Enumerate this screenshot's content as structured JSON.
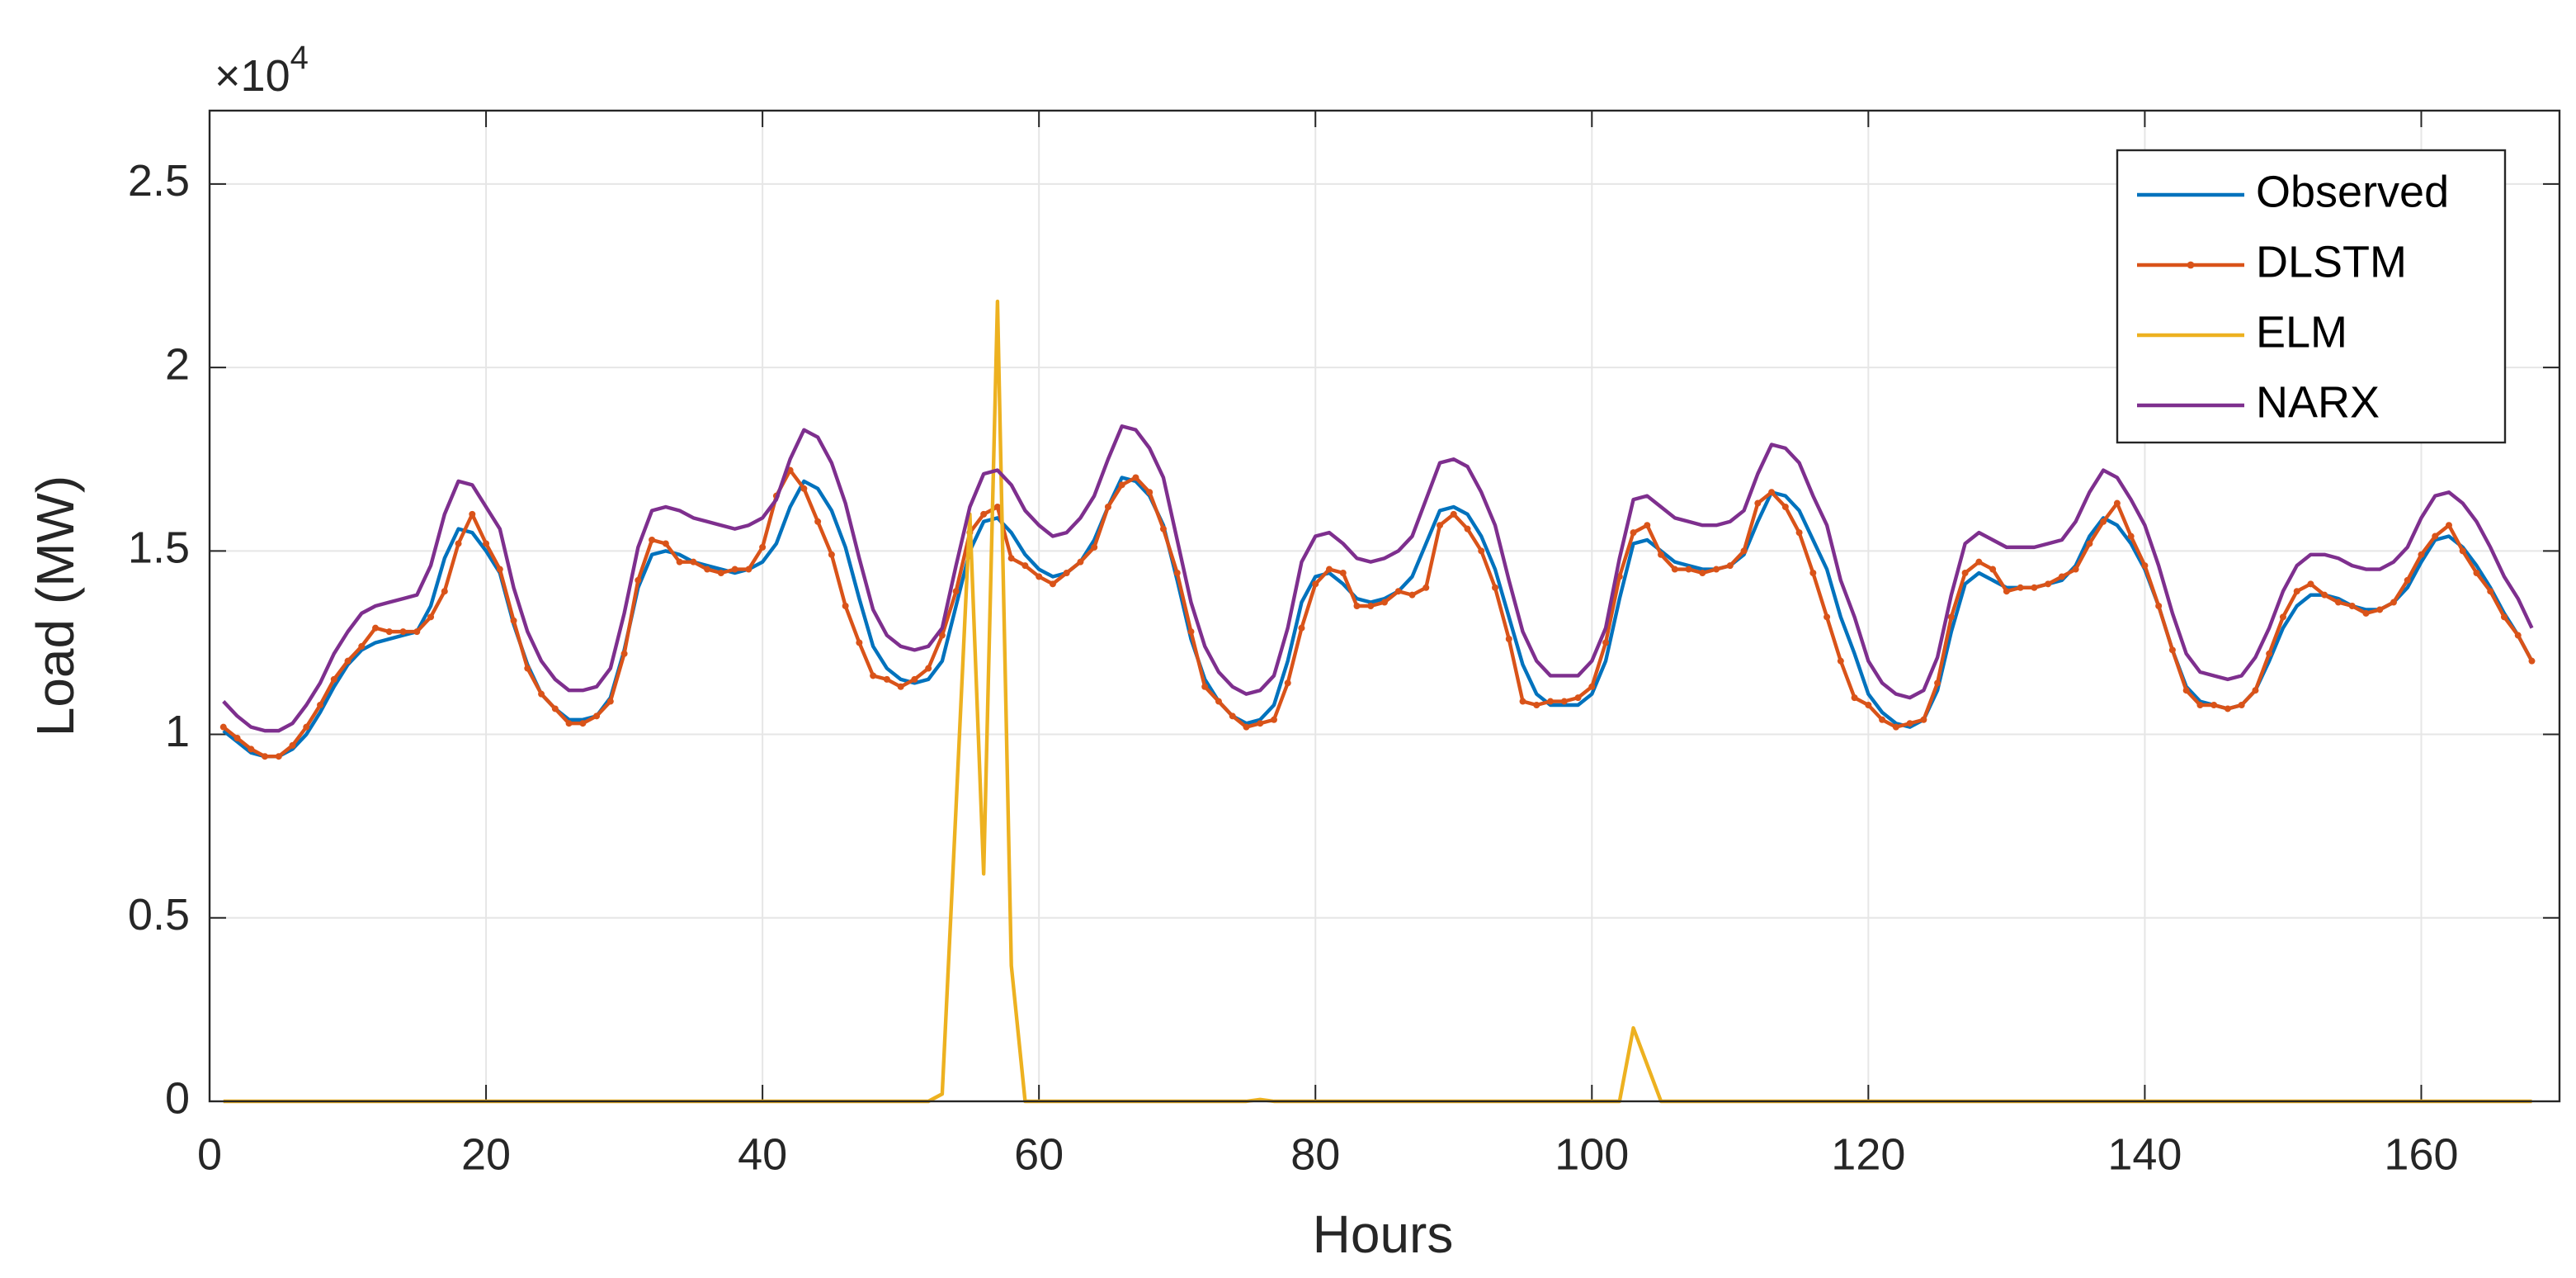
{
  "chart_data": {
    "type": "line",
    "xlabel": "Hours",
    "ylabel": "Load (MW)",
    "y_multiplier": {
      "base": "×10",
      "exponent": "4"
    },
    "xlim": [
      0,
      170
    ],
    "ylim": [
      0,
      27000
    ],
    "xticks": [
      0,
      20,
      40,
      60,
      80,
      100,
      120,
      140,
      160
    ],
    "yticks": [
      0,
      {
        "value": 5000,
        "label": "0.5"
      },
      {
        "value": 10000,
        "label": "1"
      },
      {
        "value": 15000,
        "label": "1.5"
      },
      {
        "value": 20000,
        "label": "2"
      },
      {
        "value": 25000,
        "label": "2.5"
      }
    ],
    "grid": true,
    "legend": "upper right",
    "x": [
      1,
      2,
      3,
      4,
      5,
      6,
      7,
      8,
      9,
      10,
      11,
      12,
      13,
      14,
      15,
      16,
      17,
      18,
      19,
      20,
      21,
      22,
      23,
      24,
      25,
      26,
      27,
      28,
      29,
      30,
      31,
      32,
      33,
      34,
      35,
      36,
      37,
      38,
      39,
      40,
      41,
      42,
      43,
      44,
      45,
      46,
      47,
      48,
      49,
      50,
      51,
      52,
      53,
      54,
      55,
      56,
      57,
      58,
      59,
      60,
      61,
      62,
      63,
      64,
      65,
      66,
      67,
      68,
      69,
      70,
      71,
      72,
      73,
      74,
      75,
      76,
      77,
      78,
      79,
      80,
      81,
      82,
      83,
      84,
      85,
      86,
      87,
      88,
      89,
      90,
      91,
      92,
      93,
      94,
      95,
      96,
      97,
      98,
      99,
      100,
      101,
      102,
      103,
      104,
      105,
      106,
      107,
      108,
      109,
      110,
      111,
      112,
      113,
      114,
      115,
      116,
      117,
      118,
      119,
      120,
      121,
      122,
      123,
      124,
      125,
      126,
      127,
      128,
      129,
      130,
      131,
      132,
      133,
      134,
      135,
      136,
      137,
      138,
      139,
      140,
      141,
      142,
      143,
      144,
      145,
      146,
      147,
      148,
      149,
      150,
      151,
      152,
      153,
      154,
      155,
      156,
      157,
      158,
      159,
      160,
      161,
      162,
      163,
      164,
      165,
      166,
      167,
      168
    ],
    "series": [
      {
        "name": "Observed",
        "color": "#0072bd",
        "values": [
          10100,
          9800,
          9500,
          9400,
          9400,
          9600,
          10000,
          10600,
          11300,
          11900,
          12300,
          12500,
          12600,
          12700,
          12800,
          13500,
          14800,
          15600,
          15500,
          15000,
          14400,
          13000,
          11900,
          11100,
          10700,
          10400,
          10400,
          10500,
          11000,
          12300,
          14000,
          14900,
          15000,
          14900,
          14700,
          14600,
          14500,
          14400,
          14500,
          14700,
          15200,
          16200,
          16900,
          16700,
          16100,
          15100,
          13700,
          12400,
          11800,
          11500,
          11400,
          11500,
          12000,
          13500,
          15000,
          15800,
          15900,
          15500,
          14900,
          14500,
          14300,
          14400,
          14700,
          15300,
          16200,
          17000,
          16900,
          16500,
          15700,
          14200,
          12600,
          11500,
          10900,
          10500,
          10300,
          10400,
          10800,
          12000,
          13600,
          14300,
          14400,
          14100,
          13700,
          13600,
          13700,
          13900,
          14300,
          15200,
          16100,
          16200,
          16000,
          15400,
          14500,
          13200,
          11900,
          11100,
          10800,
          10800,
          10800,
          11100,
          12000,
          13700,
          15200,
          15300,
          15000,
          14700,
          14600,
          14500,
          14500,
          14600,
          14900,
          15800,
          16600,
          16500,
          16100,
          15300,
          14500,
          13200,
          12200,
          11100,
          10600,
          10300,
          10200,
          10400,
          11200,
          12800,
          14100,
          14400,
          14200,
          14000,
          14000,
          14000,
          14100,
          14200,
          14600,
          15400,
          15900,
          15700,
          15200,
          14500,
          13500,
          12300,
          11300,
          10900,
          10800,
          10700,
          10800,
          11200,
          12000,
          12900,
          13500,
          13800,
          13800,
          13700,
          13500,
          13400,
          13400,
          13600,
          14000,
          14700,
          15300,
          15400,
          15100,
          14600,
          14000,
          13300,
          12700,
          12000
        ]
      },
      {
        "name": "DLSTM",
        "color": "#d95319",
        "marker": "dot",
        "values": [
          10200,
          9900,
          9600,
          9400,
          9400,
          9700,
          10200,
          10800,
          11500,
          12000,
          12400,
          12900,
          12800,
          12800,
          12800,
          13200,
          13900,
          15200,
          16000,
          15200,
          14500,
          13100,
          11800,
          11100,
          10700,
          10300,
          10300,
          10500,
          10900,
          12200,
          14200,
          15300,
          15200,
          14700,
          14700,
          14500,
          14400,
          14500,
          14500,
          15100,
          16500,
          17200,
          16700,
          15800,
          14900,
          13500,
          12500,
          11600,
          11500,
          11300,
          11500,
          11800,
          12700,
          13900,
          15500,
          16000,
          16200,
          14800,
          14600,
          14300,
          14100,
          14400,
          14700,
          15100,
          16200,
          16800,
          17000,
          16600,
          15600,
          14400,
          12800,
          11300,
          10900,
          10500,
          10200,
          10300,
          10400,
          11400,
          12900,
          14100,
          14500,
          14400,
          13500,
          13500,
          13600,
          13900,
          13800,
          14000,
          15700,
          16000,
          15600,
          15000,
          14000,
          12600,
          10900,
          10800,
          10900,
          10900,
          11000,
          11300,
          12500,
          14300,
          15500,
          15700,
          14900,
          14500,
          14500,
          14400,
          14500,
          14600,
          15000,
          16300,
          16600,
          16200,
          15500,
          14400,
          13200,
          12000,
          11000,
          10800,
          10400,
          10200,
          10300,
          10400,
          11400,
          13200,
          14400,
          14700,
          14500,
          13900,
          14000,
          14000,
          14100,
          14300,
          14500,
          15200,
          15800,
          16300,
          15400,
          14600,
          13500,
          12300,
          11200,
          10800,
          10800,
          10700,
          10800,
          11200,
          12200,
          13200,
          13900,
          14100,
          13800,
          13600,
          13500,
          13300,
          13400,
          13600,
          14200,
          14900,
          15400,
          15700,
          15000,
          14400,
          13900,
          13200,
          12700,
          12000
        ]
      },
      {
        "name": "ELM",
        "color": "#edb120",
        "values": [
          0,
          0,
          0,
          0,
          0,
          0,
          0,
          0,
          0,
          0,
          0,
          0,
          0,
          0,
          0,
          0,
          0,
          0,
          0,
          0,
          0,
          0,
          0,
          0,
          0,
          0,
          0,
          0,
          0,
          0,
          0,
          0,
          0,
          0,
          0,
          0,
          0,
          0,
          0,
          0,
          0,
          0,
          0,
          0,
          0,
          0,
          0,
          0,
          0,
          0,
          0,
          0,
          200,
          8000,
          16000,
          6200,
          21800,
          3700,
          0,
          0,
          0,
          0,
          0,
          0,
          0,
          0,
          0,
          0,
          0,
          0,
          0,
          0,
          0,
          0,
          0,
          50,
          0,
          0,
          0,
          0,
          0,
          0,
          0,
          0,
          0,
          0,
          0,
          0,
          0,
          0,
          0,
          0,
          0,
          0,
          0,
          0,
          0,
          0,
          0,
          0,
          0,
          0,
          2000,
          1000,
          0,
          0,
          0,
          0,
          0,
          0,
          0,
          0,
          0,
          0,
          0,
          0,
          0,
          0,
          0,
          0,
          0,
          0,
          0,
          0,
          0,
          0,
          0,
          0,
          0,
          0,
          0,
          0,
          0,
          0,
          0,
          0,
          0,
          0,
          0,
          0,
          0,
          0,
          0,
          0,
          0,
          0,
          0,
          0,
          0,
          0,
          0,
          0,
          0,
          0,
          0,
          0,
          0,
          0,
          0,
          0,
          0,
          0,
          0,
          0,
          0,
          0,
          0,
          0
        ]
      },
      {
        "name": "NARX",
        "color": "#7e2f8e",
        "values": [
          10900,
          10500,
          10200,
          10100,
          10100,
          10300,
          10800,
          11400,
          12200,
          12800,
          13300,
          13500,
          13600,
          13700,
          13800,
          14600,
          16000,
          16900,
          16800,
          16200,
          15600,
          14000,
          12800,
          12000,
          11500,
          11200,
          11200,
          11300,
          11800,
          13300,
          15100,
          16100,
          16200,
          16100,
          15900,
          15800,
          15700,
          15600,
          15700,
          15900,
          16400,
          17500,
          18300,
          18100,
          17400,
          16300,
          14800,
          13400,
          12700,
          12400,
          12300,
          12400,
          12900,
          14600,
          16200,
          17100,
          17200,
          16800,
          16100,
          15700,
          15400,
          15500,
          15900,
          16500,
          17500,
          18400,
          18300,
          17800,
          17000,
          15300,
          13600,
          12400,
          11700,
          11300,
          11100,
          11200,
          11600,
          12900,
          14700,
          15400,
          15500,
          15200,
          14800,
          14700,
          14800,
          15000,
          15400,
          16400,
          17400,
          17500,
          17300,
          16600,
          15700,
          14200,
          12800,
          12000,
          11600,
          11600,
          11600,
          12000,
          12900,
          14800,
          16400,
          16500,
          16200,
          15900,
          15800,
          15700,
          15700,
          15800,
          16100,
          17100,
          17900,
          17800,
          17400,
          16500,
          15700,
          14200,
          13200,
          12000,
          11400,
          11100,
          11000,
          11200,
          12100,
          13800,
          15200,
          15500,
          15300,
          15100,
          15100,
          15100,
          15200,
          15300,
          15800,
          16600,
          17200,
          17000,
          16400,
          15700,
          14600,
          13300,
          12200,
          11700,
          11600,
          11500,
          11600,
          12100,
          12900,
          13900,
          14600,
          14900,
          14900,
          14800,
          14600,
          14500,
          14500,
          14700,
          15100,
          15900,
          16500,
          16600,
          16300,
          15800,
          15100,
          14300,
          13700,
          12900
        ]
      }
    ]
  }
}
